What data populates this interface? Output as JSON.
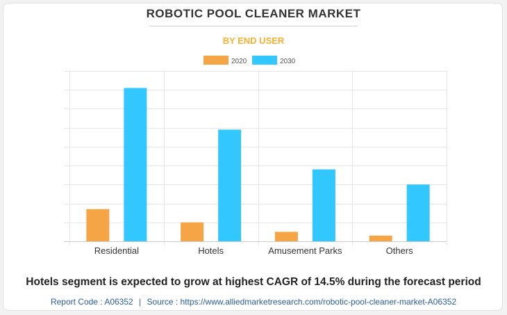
{
  "title": "ROBOTIC POOL CLEANER MARKET",
  "subtitle": "BY END USER",
  "headline": "Hotels segment is expected to grow at highest CAGR of 14.5% during the forecast period",
  "footer": {
    "report_label": "Report Code : A06352",
    "separator": "|",
    "source_label": "Source : https://www.alliedmarketresearch.com/robotic-pool-cleaner-market-A06352"
  },
  "colors": {
    "series_2020": "#f5a545",
    "series_2030": "#33c7ff",
    "grid": "#e6e6e6",
    "title": "#333333",
    "subtitle": "#f7b032",
    "footer": "#2a5d9f"
  },
  "chart_data": {
    "type": "bar",
    "title": "ROBOTIC POOL CLEANER MARKET",
    "subtitle": "BY END USER",
    "xlabel": "",
    "ylabel": "",
    "categories": [
      "Residential",
      "Hotels",
      "Amusement Parks",
      "Others"
    ],
    "series": [
      {
        "name": "2020",
        "values": [
          17,
          10,
          5,
          3
        ]
      },
      {
        "name": "2030",
        "values": [
          81,
          59,
          38,
          30
        ]
      }
    ],
    "ylim": [
      0,
      90
    ],
    "grid": true,
    "legend": "top-center"
  }
}
